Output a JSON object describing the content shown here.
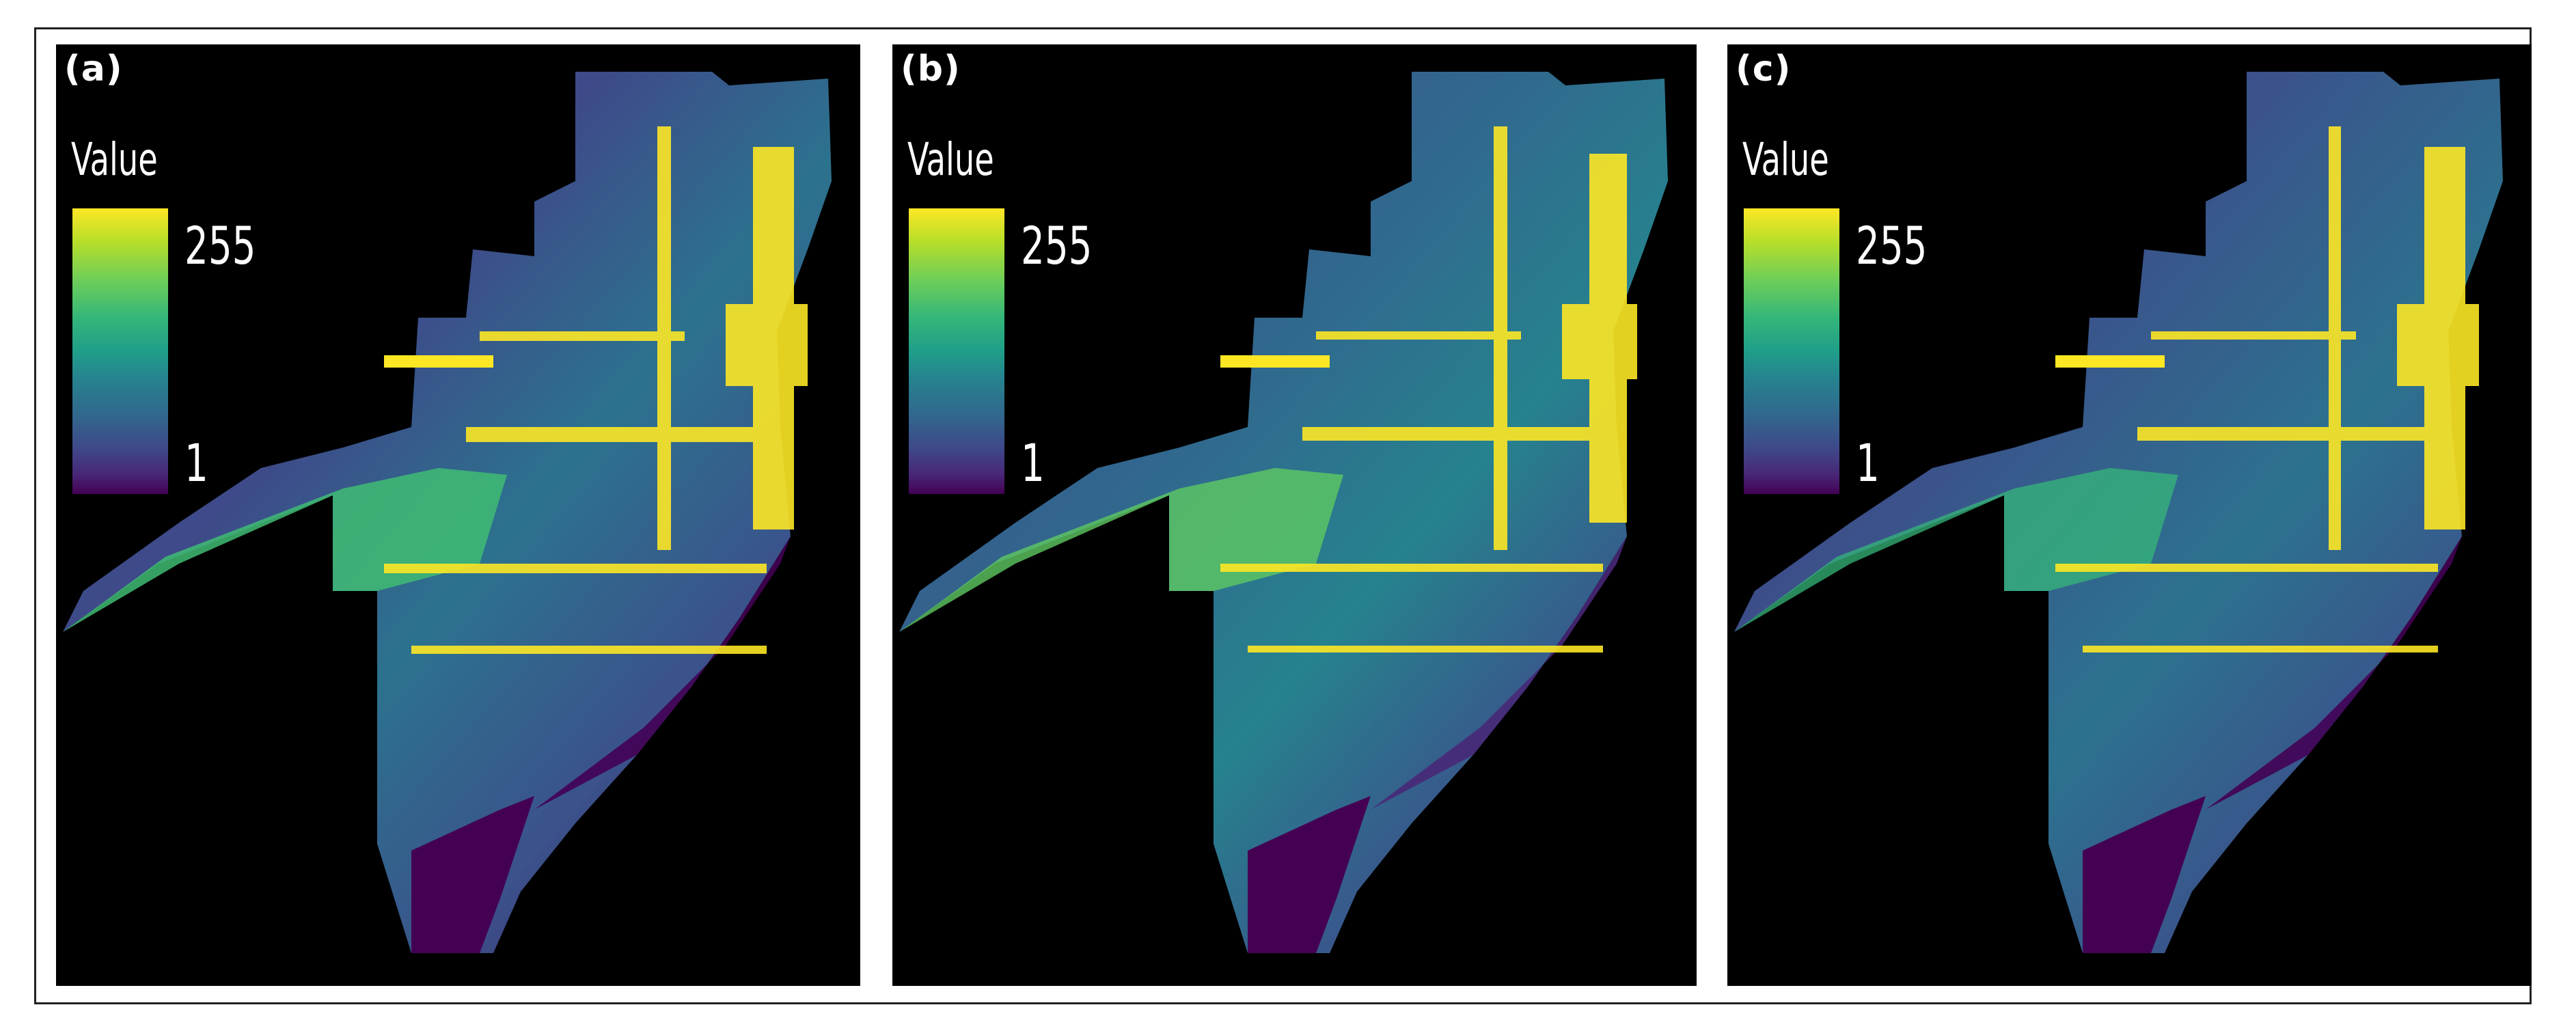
{
  "panels": [
    {
      "label": "(a)",
      "legend": {
        "title": "Value",
        "max": "255",
        "min": "1"
      }
    },
    {
      "label": "(b)",
      "legend": {
        "title": "Value",
        "max": "255",
        "min": "1"
      }
    },
    {
      "label": "(c)",
      "legend": {
        "title": "Value",
        "max": "255",
        "min": "1"
      }
    }
  ],
  "colors": {
    "background": "#000000",
    "high": "#fde725",
    "mid": "#21918c",
    "low": "#440154"
  }
}
